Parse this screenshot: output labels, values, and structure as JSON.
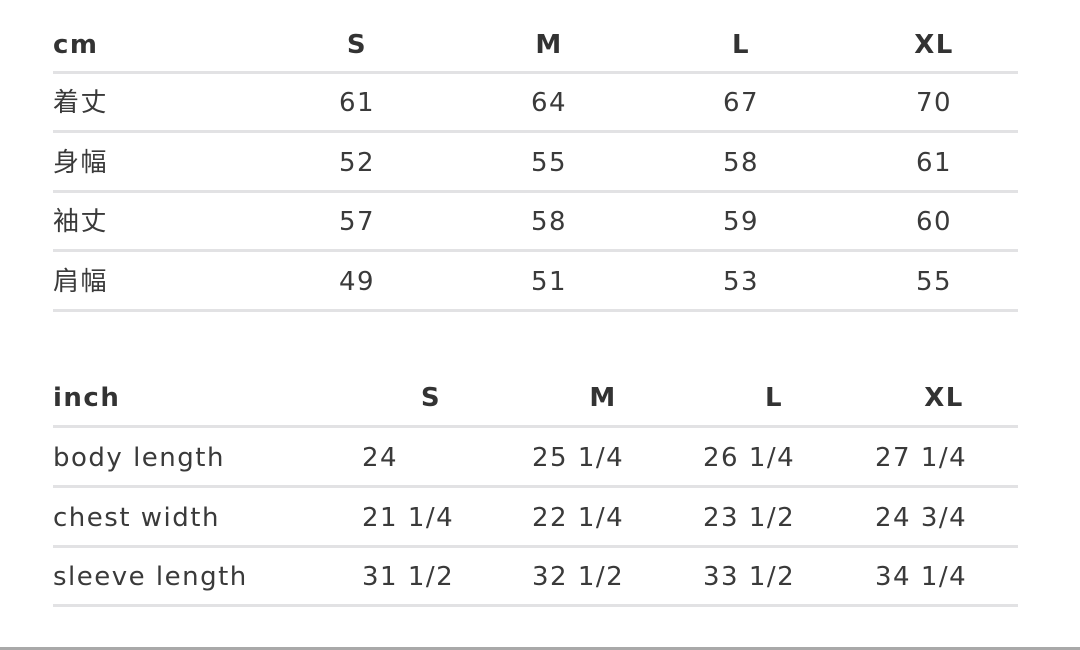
{
  "cm_table": {
    "unit": "cm",
    "sizes": [
      "S",
      "M",
      "L",
      "XL"
    ],
    "rows": [
      {
        "label": "着丈",
        "values": [
          "61",
          "64",
          "67",
          "70"
        ]
      },
      {
        "label": "身幅",
        "values": [
          "52",
          "55",
          "58",
          "61"
        ]
      },
      {
        "label": "袖丈",
        "values": [
          "57",
          "58",
          "59",
          "60"
        ]
      },
      {
        "label": "肩幅",
        "values": [
          "49",
          "51",
          "53",
          "55"
        ]
      }
    ]
  },
  "inch_table": {
    "unit": "inch",
    "sizes": [
      "S",
      "M",
      "L",
      "XL"
    ],
    "rows": [
      {
        "label": "body length",
        "values": [
          "24",
          "25 1/4",
          "26 1/4",
          "27 1/4"
        ]
      },
      {
        "label": "chest width",
        "values": [
          "21 1/4",
          "22 1/4",
          "23 1/2",
          "24 3/4"
        ]
      },
      {
        "label": "sleeve length",
        "values": [
          "31 1/2",
          "32 1/2",
          "33 1/2",
          "34 1/4"
        ]
      }
    ]
  }
}
